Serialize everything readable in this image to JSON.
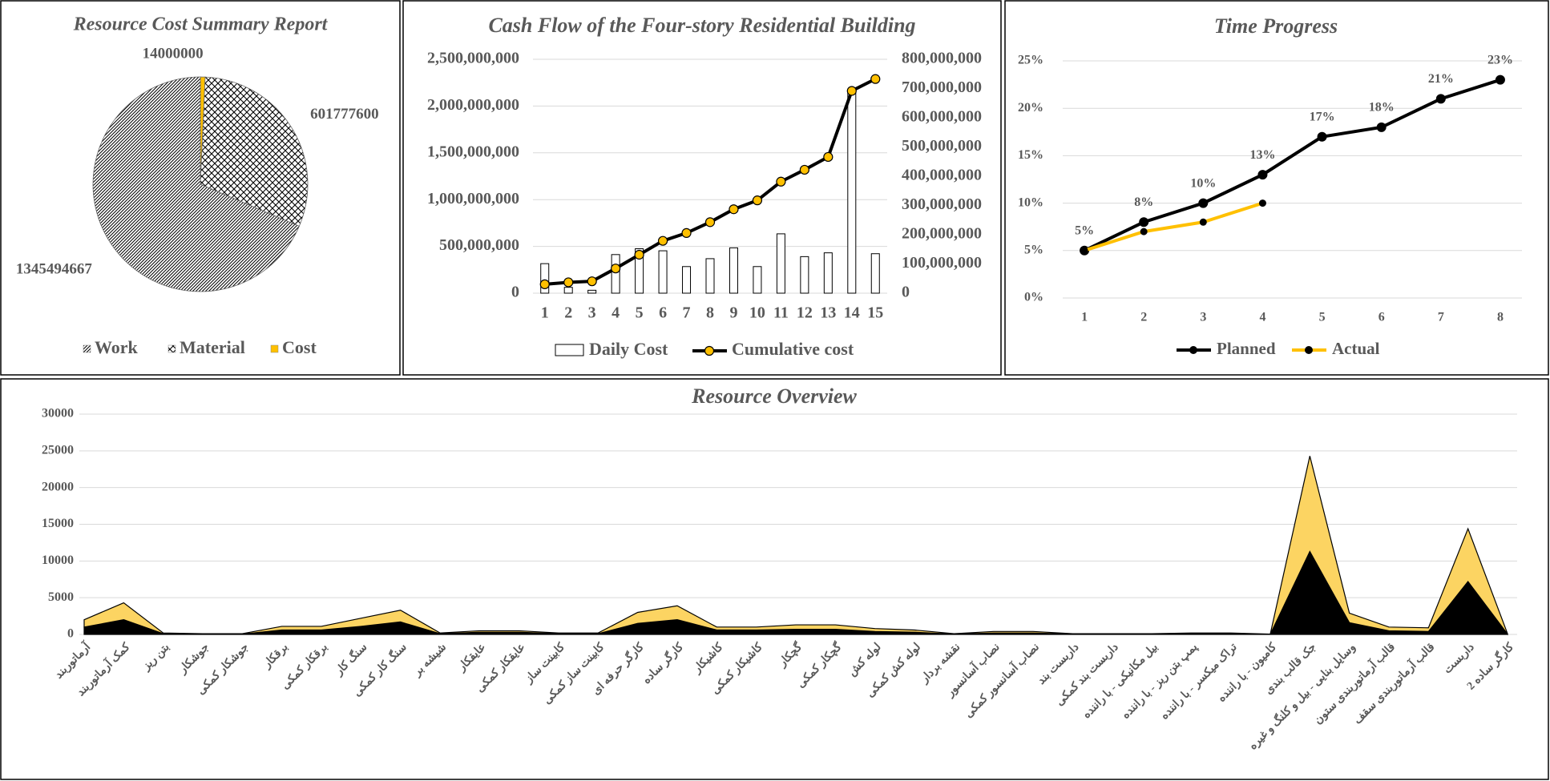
{
  "chart_data": [
    {
      "type": "pie",
      "title": "Resource Cost Summary Report",
      "categories": [
        "Work",
        "Material",
        "Cost"
      ],
      "values": [
        1345494667,
        601777600,
        14000000
      ],
      "colors": [
        "#000000",
        "#000000",
        "#ffc000"
      ],
      "legend": "bottom"
    },
    {
      "type": "bar",
      "title": "Cash Flow of the Four-story Residential Building",
      "categories": [
        1,
        2,
        3,
        4,
        5,
        6,
        7,
        8,
        9,
        10,
        11,
        12,
        13,
        14,
        15
      ],
      "series": [
        {
          "name": "Daily Cost",
          "type": "bar",
          "axis": "y2",
          "color": "#ffffff",
          "values": [
            101000000,
            20000000,
            10000000,
            132000000,
            152000000,
            145000000,
            91000000,
            118000000,
            155000000,
            91000000,
            203000000,
            125000000,
            138000000,
            692000000,
            135000000
          ]
        },
        {
          "name": "Cumulative cost",
          "type": "line",
          "color": "#000000",
          "marker_color": "#ffc000",
          "values": [
            95000000,
            116000000,
            127000000,
            264000000,
            411000000,
            559000000,
            643000000,
            759000000,
            897000000,
            992000000,
            1192000000,
            1319000000,
            1456000000,
            2162000000,
            2289000000
          ]
        }
      ],
      "ylim": [
        0,
        2500000000
      ],
      "yticks": [
        0,
        {
          "value": 500000000,
          "label": "500,000,000"
        },
        {
          "value": 1000000000,
          "label": "1,000,000,000"
        },
        {
          "value": 1500000000,
          "label": "1,500,000,000"
        },
        {
          "value": 2000000000,
          "label": "2,000,000,000"
        },
        {
          "value": 2500000000,
          "label": "2,500,000,000"
        }
      ],
      "y2lim": [
        0,
        800000000
      ],
      "y2ticks": [
        0,
        {
          "value": 100000000,
          "label": "100,000,000"
        },
        {
          "value": 200000000,
          "label": "200,000,000"
        },
        {
          "value": 300000000,
          "label": "300,000,000"
        },
        {
          "value": 400000000,
          "label": "400,000,000"
        },
        {
          "value": 500000000,
          "label": "500,000,000"
        },
        {
          "value": 600000000,
          "label": "600,000,000"
        },
        {
          "value": 700000000,
          "label": "700,000,000"
        },
        {
          "value": 800000000,
          "label": "800,000,000"
        }
      ],
      "grid": true,
      "legend": "bottom"
    },
    {
      "type": "line",
      "title": "Time Progress",
      "categories": [
        1,
        2,
        3,
        4,
        5,
        6,
        7,
        8
      ],
      "series": [
        {
          "name": "Planned",
          "color": "#000000",
          "values": [
            5,
            8,
            10,
            13,
            17,
            18,
            21,
            23
          ],
          "value_labels": [
            "5%",
            "8%",
            "10%",
            "13%",
            "17%",
            "18%",
            "21%",
            "23%"
          ]
        },
        {
          "name": "Actual",
          "color": "#ffc000",
          "values": [
            5,
            7,
            8,
            10,
            null,
            null,
            null,
            null
          ]
        }
      ],
      "ylim": [
        0,
        25
      ],
      "yticks": [
        {
          "value": 0,
          "label": "0%"
        },
        {
          "value": 5,
          "label": "5%"
        },
        {
          "value": 10,
          "label": "10%"
        },
        {
          "value": 15,
          "label": "15%"
        },
        {
          "value": 20,
          "label": "20%"
        },
        {
          "value": 25,
          "label": "25%"
        }
      ],
      "grid": true,
      "legend": "bottom"
    },
    {
      "type": "area",
      "title": "Resource Overview",
      "stacked": true,
      "categories": [
        "آرماتوربند",
        "کمک آرماتوربند",
        "بتن ریز",
        "جوشکار",
        "جوشکار کمکی",
        "برقکار",
        "برقکار کمکی",
        "سنگ کار",
        "سنگ کار کمکی",
        "شیشه بر",
        "عایقکار",
        "عایقکار کمکی",
        "کابینت ساز",
        "کابینت ساز کمکی",
        "کارگر حرفه ای",
        "کارگر ساده",
        "کاشیکار",
        "کاشیکار کمکی",
        "گچکار",
        "گچکار کمکی",
        "لوله کش",
        "لوله کش کمکی",
        "نقشه بردار",
        "نصاب آسانسور",
        "نصاب آسانسور کمکی",
        "داربست بند",
        "داربست بند کمکی",
        "بیل مکانیکی - با راننده",
        "پمپ بتن ریز - با راننده",
        "تراک میکسر - با راننده",
        "کامیون - با راننده",
        "جک قالب بندی",
        "وسایل بنایی - بیل و کلنگ و غیره",
        "قالب آرماتوربندی ستون",
        "قالب آرماتوربندی سقف",
        "داربست",
        "کارگر ساده 2"
      ],
      "series": [
        {
          "color": "#000000",
          "values": [
            1000,
            2000,
            100,
            50,
            50,
            600,
            600,
            1100,
            1700,
            100,
            300,
            300,
            100,
            100,
            1500,
            2000,
            600,
            600,
            700,
            700,
            400,
            300,
            50,
            200,
            200,
            50,
            50,
            50,
            100,
            100,
            20,
            11300,
            1600,
            500,
            400,
            7200,
            50
          ]
        },
        {
          "color": "#fcd462",
          "values": [
            1000,
            2300,
            100,
            50,
            50,
            500,
            500,
            1100,
            1600,
            100,
            200,
            200,
            100,
            100,
            1500,
            1900,
            400,
            400,
            600,
            600,
            400,
            300,
            50,
            200,
            200,
            50,
            50,
            50,
            100,
            100,
            30,
            13000,
            1300,
            500,
            500,
            7200,
            50
          ]
        }
      ],
      "ylim": [
        0,
        30000
      ],
      "yticks": [
        0,
        5000,
        10000,
        15000,
        20000,
        25000,
        30000
      ],
      "grid": true
    }
  ]
}
